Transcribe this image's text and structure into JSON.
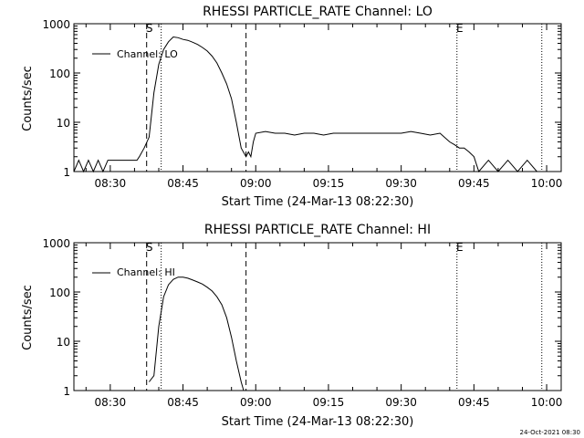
{
  "footer_timestamp": "24-Oct-2021 08:30",
  "chart_data": [
    {
      "type": "line",
      "title": "RHESSI PARTICLE_RATE Channel: LO",
      "xlabel": "Start Time (24-Mar-13 08:22:30)",
      "ylabel": "Counts/sec",
      "y_scale": "log",
      "ylim": [
        1,
        1000
      ],
      "xlim": [
        "08:22:30",
        "10:03:00"
      ],
      "x_tick_labels": [
        "08:30",
        "08:45",
        "09:00",
        "09:15",
        "09:30",
        "09:45",
        "10:00"
      ],
      "y_tick_labels": [
        "1",
        "10",
        "100",
        "1000"
      ],
      "legend": "top-left",
      "grid": false,
      "markers": [
        {
          "label": "S",
          "time": "08:37:30",
          "style": "dashed"
        },
        {
          "time": "08:40:30",
          "style": "dotted"
        },
        {
          "time": "08:58:00",
          "style": "dashed"
        },
        {
          "label": "E",
          "time": "09:41:30",
          "style": "dotted"
        },
        {
          "time": "09:59:00",
          "style": "dotted"
        }
      ],
      "series": [
        {
          "name": "Channel: LO",
          "x": [
            "08:22:30",
            "08:23:30",
            "08:24:30",
            "08:25:30",
            "08:26:30",
            "08:27:30",
            "08:28:30",
            "08:29:30",
            "08:30:30",
            "08:31:30",
            "08:32:30",
            "08:33:30",
            "08:34:30",
            "08:35:30",
            "08:36:00",
            "08:37:00",
            "08:38:00",
            "08:39:00",
            "08:40:00",
            "08:41:00",
            "08:42:00",
            "08:43:00",
            "08:44:00",
            "08:45:00",
            "08:46:00",
            "08:47:00",
            "08:48:00",
            "08:49:00",
            "08:50:00",
            "08:51:00",
            "08:52:00",
            "08:53:00",
            "08:54:00",
            "08:55:00",
            "08:56:00",
            "08:57:00",
            "08:58:00",
            "08:58:30",
            "08:59:00",
            "08:59:30",
            "09:00:00",
            "09:02:00",
            "09:04:00",
            "09:06:00",
            "09:08:00",
            "09:10:00",
            "09:12:00",
            "09:14:00",
            "09:16:00",
            "09:18:00",
            "09:20:00",
            "09:22:00",
            "09:24:00",
            "09:26:00",
            "09:28:00",
            "09:30:00",
            "09:32:00",
            "09:34:00",
            "09:36:00",
            "09:38:00",
            "09:40:00",
            "09:41:00",
            "09:42:00",
            "09:43:00",
            "09:44:00",
            "09:45:00",
            "09:46:00",
            "09:48:00",
            "09:50:00",
            "09:52:00",
            "09:54:00",
            "09:56:00",
            "09:58:00"
          ],
          "y": [
            1,
            1.7,
            1,
            1.7,
            1,
            1.7,
            1,
            1.7,
            1.7,
            1.7,
            1.7,
            1.7,
            1.7,
            1.7,
            2,
            3,
            5,
            40,
            150,
            300,
            430,
            540,
            520,
            480,
            460,
            420,
            380,
            330,
            280,
            220,
            160,
            100,
            60,
            30,
            10,
            3,
            2,
            2.5,
            2,
            4,
            6,
            6.5,
            6,
            6,
            5.5,
            6,
            6,
            5.5,
            6,
            6,
            6,
            6,
            6,
            6,
            6,
            6,
            6.5,
            6,
            5.5,
            6,
            4,
            3.5,
            3,
            3,
            2.5,
            2,
            1,
            1.7,
            1,
            1.7,
            1,
            1.7,
            1
          ]
        }
      ]
    },
    {
      "type": "line",
      "title": "RHESSI PARTICLE_RATE Channel: HI",
      "xlabel": "Start Time (24-Mar-13 08:22:30)",
      "ylabel": "Counts/sec",
      "y_scale": "log",
      "ylim": [
        1,
        1000
      ],
      "xlim": [
        "08:22:30",
        "10:03:00"
      ],
      "x_tick_labels": [
        "08:30",
        "08:45",
        "09:00",
        "09:15",
        "09:30",
        "09:45",
        "10:00"
      ],
      "y_tick_labels": [
        "1",
        "10",
        "100",
        "1000"
      ],
      "legend": "top-left",
      "grid": false,
      "markers": [
        {
          "label": "S",
          "time": "08:37:30",
          "style": "dashed"
        },
        {
          "time": "08:40:30",
          "style": "dotted"
        },
        {
          "time": "08:58:00",
          "style": "dashed"
        },
        {
          "label": "E",
          "time": "09:41:30",
          "style": "dotted"
        },
        {
          "time": "09:59:00",
          "style": "dotted"
        }
      ],
      "series": [
        {
          "name": "Channel: HI",
          "x": [
            "08:38:00",
            "08:39:00",
            "08:40:00",
            "08:41:00",
            "08:42:00",
            "08:43:00",
            "08:44:00",
            "08:45:00",
            "08:46:00",
            "08:47:00",
            "08:48:00",
            "08:49:00",
            "08:50:00",
            "08:51:00",
            "08:52:00",
            "08:53:00",
            "08:54:00",
            "08:55:00",
            "08:56:00",
            "08:57:00",
            "08:57:30"
          ],
          "y": [
            1.5,
            2,
            20,
            80,
            140,
            180,
            200,
            200,
            190,
            175,
            160,
            145,
            125,
            105,
            80,
            55,
            30,
            12,
            4,
            1.5,
            1
          ]
        }
      ]
    }
  ]
}
